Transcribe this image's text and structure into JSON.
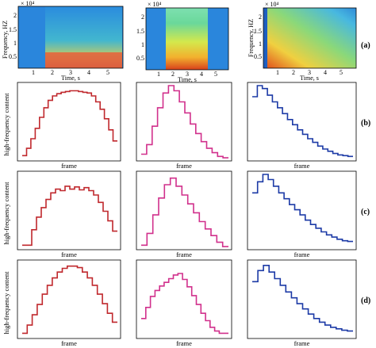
{
  "figure": {
    "spectrogram_ylabel": "Frequency, HZ",
    "spectrogram_xlabel": "Time, s",
    "exponent_label": "× 10⁴",
    "step_ylabel": "high-frequency content",
    "step_xlabel": "frame",
    "row_labels": [
      "(a)",
      "(b)",
      "(c)",
      "(d)"
    ]
  },
  "chart_data": [
    {
      "type": "heatmap",
      "panel": "a1",
      "xlabel": "Time, s",
      "ylabel": "Frequency, HZ",
      "x_ticks": [
        1,
        2,
        3,
        4,
        5
      ],
      "y_ticks": [
        0.5,
        1,
        1.5,
        2
      ],
      "y_multiplier": "× 10⁴",
      "xlim": [
        0,
        6.2
      ],
      "ylim": [
        0,
        2.4
      ],
      "colors": {
        "low": "#1e6fc8",
        "high": "#d63a12"
      }
    },
    {
      "type": "heatmap",
      "panel": "a2",
      "xlabel": "Time, s",
      "ylabel": "",
      "x_ticks": [
        1,
        2,
        3,
        4,
        5
      ],
      "y_ticks": [
        0.5,
        1,
        1.5,
        2
      ],
      "y_multiplier": "× 10⁴",
      "xlim": [
        0,
        6.2
      ],
      "ylim": [
        0,
        2.4
      ],
      "colors": {
        "low": "#1e6fc8",
        "high": "#d63a12"
      }
    },
    {
      "type": "heatmap",
      "panel": "a3",
      "xlabel": "Time, s",
      "ylabel": "Frequency, HZ",
      "x_ticks": [
        1,
        2,
        3,
        4,
        5
      ],
      "y_ticks": [
        0.5,
        1,
        1.5,
        2
      ],
      "y_multiplier": "× 10⁴",
      "xlim": [
        0,
        6.2
      ],
      "ylim": [
        0,
        2.4
      ],
      "colors": {
        "low": "#1e6fc8",
        "high": "#d63a12"
      }
    },
    {
      "type": "line",
      "panel": "b1",
      "xlabel": "frame",
      "ylabel": "high-frequency content",
      "color": "#c0282d",
      "values": [
        0.05,
        0.15,
        0.28,
        0.42,
        0.57,
        0.7,
        0.8,
        0.86,
        0.89,
        0.91,
        0.92,
        0.93,
        0.93,
        0.92,
        0.91,
        0.9,
        0.86,
        0.78,
        0.68,
        0.55,
        0.4,
        0.25
      ]
    },
    {
      "type": "line",
      "panel": "b2",
      "xlabel": "frame",
      "ylabel": "",
      "color": "#d1308c",
      "values": [
        0.07,
        0.2,
        0.45,
        0.7,
        0.9,
        1.0,
        0.93,
        0.78,
        0.63,
        0.48,
        0.35,
        0.24,
        0.15,
        0.09,
        0.04,
        0.02
      ]
    },
    {
      "type": "line",
      "panel": "b3",
      "xlabel": "frame",
      "ylabel": "",
      "color": "#1c3aa6",
      "values": [
        0.85,
        1.0,
        0.96,
        0.87,
        0.78,
        0.7,
        0.62,
        0.54,
        0.47,
        0.4,
        0.34,
        0.28,
        0.23,
        0.18,
        0.14,
        0.11,
        0.08,
        0.06,
        0.05,
        0.04
      ]
    },
    {
      "type": "line",
      "panel": "c1",
      "xlabel": "frame",
      "ylabel": "high-frequency content",
      "color": "#c0282d",
      "values": [
        0.04,
        0.04,
        0.25,
        0.42,
        0.55,
        0.66,
        0.75,
        0.8,
        0.78,
        0.84,
        0.8,
        0.83,
        0.79,
        0.82,
        0.78,
        0.72,
        0.62,
        0.5,
        0.37,
        0.23
      ]
    },
    {
      "type": "line",
      "panel": "c2",
      "xlabel": "frame",
      "ylabel": "",
      "color": "#d1308c",
      "values": [
        0.04,
        0.2,
        0.45,
        0.68,
        0.86,
        0.95,
        0.84,
        0.72,
        0.6,
        0.48,
        0.36,
        0.26,
        0.17,
        0.08,
        0.02
      ]
    },
    {
      "type": "line",
      "panel": "c3",
      "xlabel": "frame",
      "ylabel": "",
      "color": "#1c3aa6",
      "values": [
        0.75,
        0.9,
        1.0,
        0.93,
        0.84,
        0.75,
        0.67,
        0.59,
        0.52,
        0.45,
        0.38,
        0.32,
        0.27,
        0.22,
        0.18,
        0.15,
        0.12,
        0.1,
        0.09
      ]
    },
    {
      "type": "line",
      "panel": "d1",
      "xlabel": "frame",
      "ylabel": "high-frequency content",
      "color": "#c0282d",
      "values": [
        0.05,
        0.16,
        0.3,
        0.44,
        0.58,
        0.7,
        0.8,
        0.88,
        0.93,
        0.96,
        0.96,
        0.94,
        0.88,
        0.8,
        0.7,
        0.58,
        0.45,
        0.32,
        0.2
      ]
    },
    {
      "type": "line",
      "panel": "d2",
      "xlabel": "frame",
      "ylabel": "",
      "color": "#d1308c",
      "values": [
        0.25,
        0.4,
        0.55,
        0.63,
        0.69,
        0.74,
        0.79,
        0.84,
        0.86,
        0.78,
        0.68,
        0.56,
        0.44,
        0.32,
        0.22,
        0.13,
        0.08,
        0.05,
        0.05
      ]
    },
    {
      "type": "line",
      "panel": "d3",
      "xlabel": "frame",
      "ylabel": "",
      "color": "#1c3aa6",
      "values": [
        0.75,
        0.9,
        0.97,
        0.88,
        0.79,
        0.7,
        0.61,
        0.53,
        0.45,
        0.38,
        0.31,
        0.25,
        0.2,
        0.16,
        0.13,
        0.11,
        0.09,
        0.08
      ]
    }
  ]
}
